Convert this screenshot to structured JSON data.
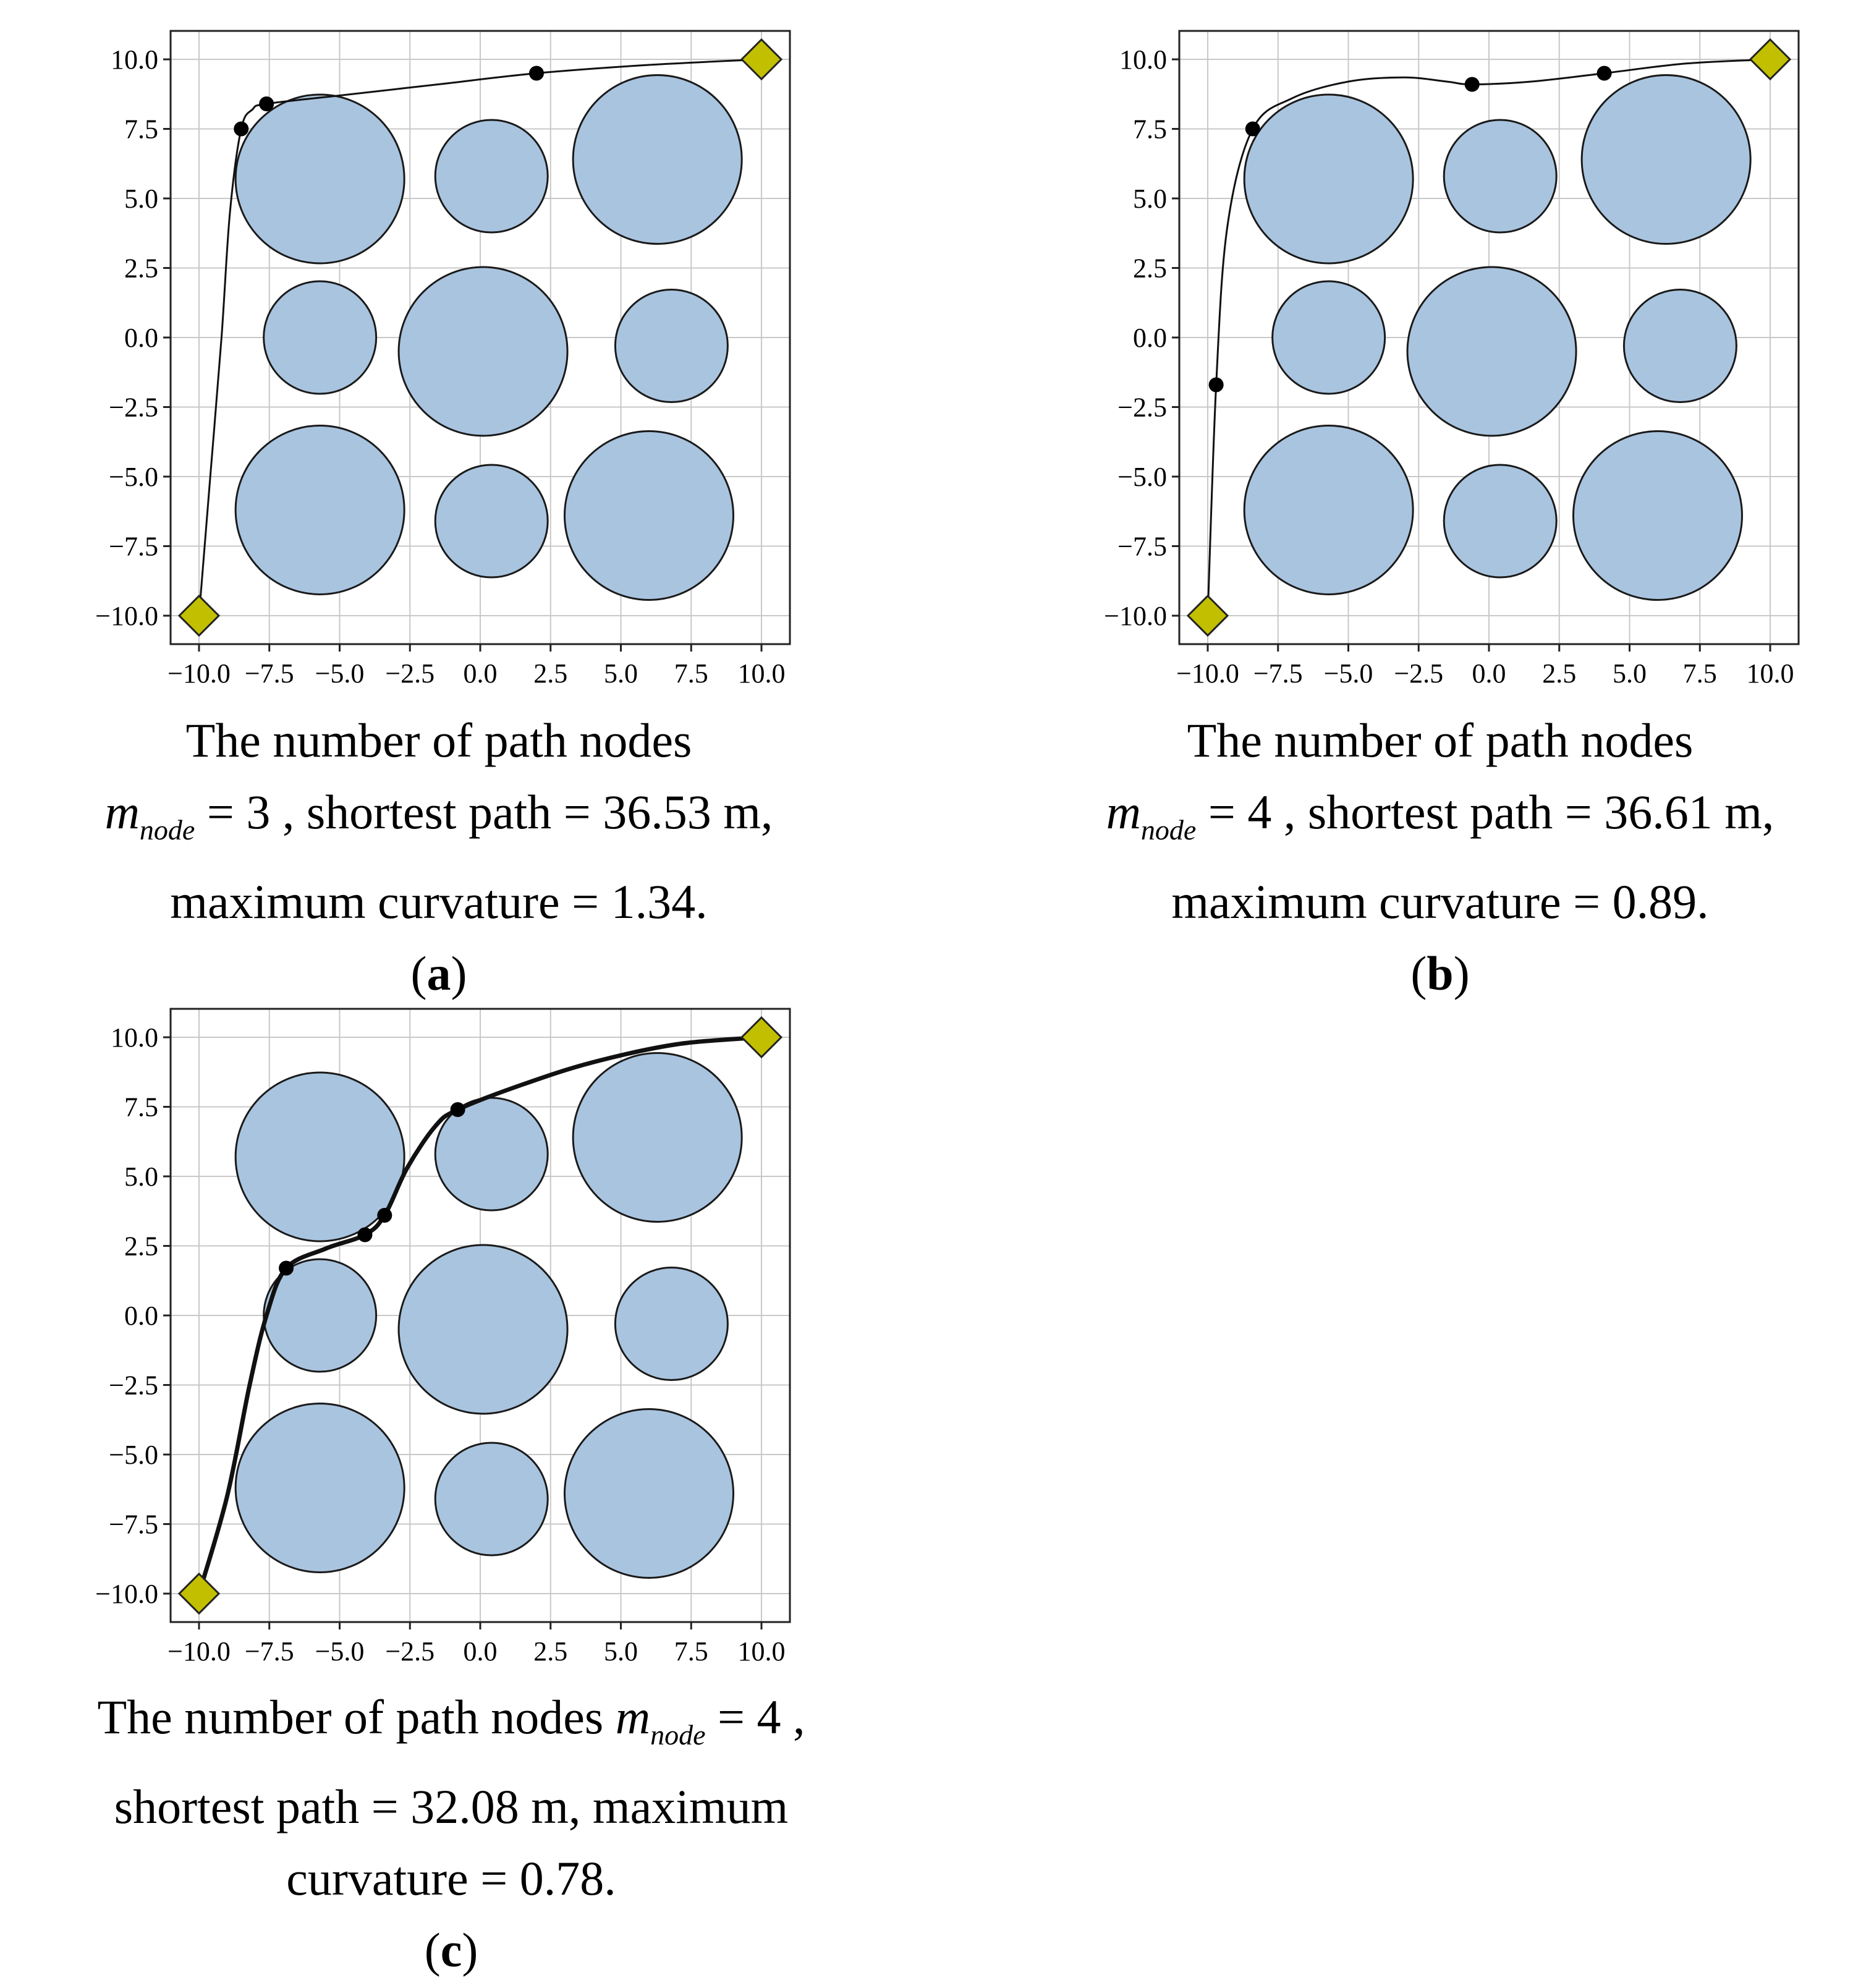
{
  "chart_data": [
    {
      "type": "scatter",
      "panel": "a",
      "panel_label": "a",
      "xlim": [
        -10.0,
        10.0
      ],
      "ylim": [
        -10.0,
        10.0
      ],
      "xticks": [
        "−10.0",
        "−7.5",
        "−5.0",
        "−2.5",
        "0.0",
        "2.5",
        "5.0",
        "7.5",
        "10.0"
      ],
      "yticks": [
        "10.0",
        "7.5",
        "5.0",
        "2.5",
        "0.0",
        "−2.5",
        "−5.0",
        "−7.5",
        "−10.0"
      ],
      "grid": true,
      "obstacles": [
        {
          "x": -5.7,
          "y": 5.7,
          "r": 3.0
        },
        {
          "x": 0.4,
          "y": 5.8,
          "r": 2.0
        },
        {
          "x": 6.3,
          "y": 6.4,
          "r": 3.0
        },
        {
          "x": -5.7,
          "y": 0.0,
          "r": 2.0
        },
        {
          "x": 0.1,
          "y": -0.5,
          "r": 3.0
        },
        {
          "x": 6.8,
          "y": -0.3,
          "r": 2.0
        },
        {
          "x": -5.7,
          "y": -6.2,
          "r": 3.0
        },
        {
          "x": 0.4,
          "y": -6.6,
          "r": 2.0
        },
        {
          "x": 6.0,
          "y": -6.4,
          "r": 3.0
        }
      ],
      "start": {
        "x": -10.0,
        "y": -10.0
      },
      "goal": {
        "x": 10.0,
        "y": 10.0
      },
      "path_nodes": [
        {
          "x": -8.5,
          "y": 7.5
        },
        {
          "x": -7.6,
          "y": 8.4
        },
        {
          "x": 2.0,
          "y": 9.5
        }
      ],
      "path": [
        [
          -10.0,
          -10.0
        ],
        [
          -9.6,
          -5.0
        ],
        [
          -9.2,
          0.0
        ],
        [
          -8.9,
          4.5
        ],
        [
          -8.5,
          7.5
        ],
        [
          -8.1,
          8.2
        ],
        [
          -7.6,
          8.4
        ],
        [
          -5.0,
          8.7
        ],
        [
          -1.5,
          9.1
        ],
        [
          2.0,
          9.5
        ],
        [
          6.0,
          9.8
        ],
        [
          10.0,
          10.0
        ]
      ],
      "path_width": "thin",
      "caption": {
        "line1": "The number of path nodes",
        "m": "m",
        "sub": "node",
        "line2_rest": " = 3 , shortest path = 36.53 m,",
        "line3": "maximum curvature = 1.34."
      }
    },
    {
      "type": "scatter",
      "panel": "b",
      "panel_label": "b",
      "xlim": [
        -10.0,
        10.0
      ],
      "ylim": [
        -10.0,
        10.0
      ],
      "xticks": [
        "−10.0",
        "−7.5",
        "−5.0",
        "−2.5",
        "0.0",
        "2.5",
        "5.0",
        "7.5",
        "10.0"
      ],
      "yticks": [
        "10.0",
        "7.5",
        "5.0",
        "2.5",
        "0.0",
        "−2.5",
        "−5.0",
        "−7.5",
        "−10.0"
      ],
      "grid": true,
      "obstacles": [
        {
          "x": -5.7,
          "y": 5.7,
          "r": 3.0
        },
        {
          "x": 0.4,
          "y": 5.8,
          "r": 2.0
        },
        {
          "x": 6.3,
          "y": 6.4,
          "r": 3.0
        },
        {
          "x": -5.7,
          "y": 0.0,
          "r": 2.0
        },
        {
          "x": 0.1,
          "y": -0.5,
          "r": 3.0
        },
        {
          "x": 6.8,
          "y": -0.3,
          "r": 2.0
        },
        {
          "x": -5.7,
          "y": -6.2,
          "r": 3.0
        },
        {
          "x": 0.4,
          "y": -6.6,
          "r": 2.0
        },
        {
          "x": 6.0,
          "y": -6.4,
          "r": 3.0
        }
      ],
      "start": {
        "x": -10.0,
        "y": -10.0
      },
      "goal": {
        "x": 10.0,
        "y": 10.0
      },
      "path_nodes": [
        {
          "x": -9.7,
          "y": -1.7
        },
        {
          "x": -8.4,
          "y": 7.5
        },
        {
          "x": -0.6,
          "y": 9.1
        },
        {
          "x": 4.1,
          "y": 9.5
        }
      ],
      "path": [
        [
          -10.0,
          -10.0
        ],
        [
          -9.7,
          -1.7
        ],
        [
          -9.3,
          4.0
        ],
        [
          -8.4,
          7.5
        ],
        [
          -7.0,
          8.6
        ],
        [
          -5.0,
          9.2
        ],
        [
          -3.0,
          9.35
        ],
        [
          -1.5,
          9.2
        ],
        [
          -0.6,
          9.1
        ],
        [
          1.5,
          9.2
        ],
        [
          4.1,
          9.5
        ],
        [
          7.0,
          9.85
        ],
        [
          10.0,
          10.0
        ]
      ],
      "path_width": "thin",
      "caption": {
        "line1": "The number of path nodes",
        "m": "m",
        "sub": "node",
        "line2_rest": " = 4 , shortest path = 36.61 m,",
        "line3": "maximum curvature = 0.89."
      }
    },
    {
      "type": "scatter",
      "panel": "c",
      "panel_label": "c",
      "xlim": [
        -10.0,
        10.0
      ],
      "ylim": [
        -10.0,
        10.0
      ],
      "xticks": [
        "−10.0",
        "−7.5",
        "−5.0",
        "−2.5",
        "0.0",
        "2.5",
        "5.0",
        "7.5",
        "10.0"
      ],
      "yticks": [
        "10.0",
        "7.5",
        "5.0",
        "2.5",
        "0.0",
        "−2.5",
        "−5.0",
        "−7.5",
        "−10.0"
      ],
      "grid": true,
      "obstacles": [
        {
          "x": -5.7,
          "y": 5.7,
          "r": 3.0
        },
        {
          "x": 0.4,
          "y": 5.8,
          "r": 2.0
        },
        {
          "x": 6.3,
          "y": 6.4,
          "r": 3.0
        },
        {
          "x": -5.7,
          "y": 0.0,
          "r": 2.0
        },
        {
          "x": 0.1,
          "y": -0.5,
          "r": 3.0
        },
        {
          "x": 6.8,
          "y": -0.3,
          "r": 2.0
        },
        {
          "x": -5.7,
          "y": -6.2,
          "r": 3.0
        },
        {
          "x": 0.4,
          "y": -6.6,
          "r": 2.0
        },
        {
          "x": 6.0,
          "y": -6.4,
          "r": 3.0
        }
      ],
      "start": {
        "x": -10.0,
        "y": -10.0
      },
      "goal": {
        "x": 10.0,
        "y": 10.0
      },
      "path_nodes": [
        {
          "x": -6.9,
          "y": 1.7
        },
        {
          "x": -4.1,
          "y": 2.9
        },
        {
          "x": -3.4,
          "y": 3.6
        },
        {
          "x": -0.8,
          "y": 7.4
        }
      ],
      "path": [
        [
          -10.0,
          -10.0
        ],
        [
          -9.0,
          -6.5
        ],
        [
          -8.2,
          -2.5
        ],
        [
          -7.6,
          0.0
        ],
        [
          -6.9,
          1.7
        ],
        [
          -5.5,
          2.4
        ],
        [
          -4.1,
          2.9
        ],
        [
          -3.4,
          3.6
        ],
        [
          -2.6,
          5.3
        ],
        [
          -1.6,
          6.8
        ],
        [
          -0.8,
          7.4
        ],
        [
          1.5,
          8.3
        ],
        [
          4.0,
          9.1
        ],
        [
          7.0,
          9.75
        ],
        [
          10.0,
          10.0
        ]
      ],
      "path_width": "thick",
      "caption": {
        "line1": "The number of path nodes ",
        "m": "m",
        "sub": "node",
        "line1_rest": " = 4 ,",
        "line2": "shortest path = 32.08 m, maximum",
        "line3": "curvature = 0.78."
      }
    }
  ],
  "colors": {
    "obstacle_fill": "#a9c4df",
    "obstacle_stroke": "#1a1a1a",
    "marker_fill": "#c2bf00",
    "grid": "#c8c8c8",
    "path": "#111111"
  }
}
